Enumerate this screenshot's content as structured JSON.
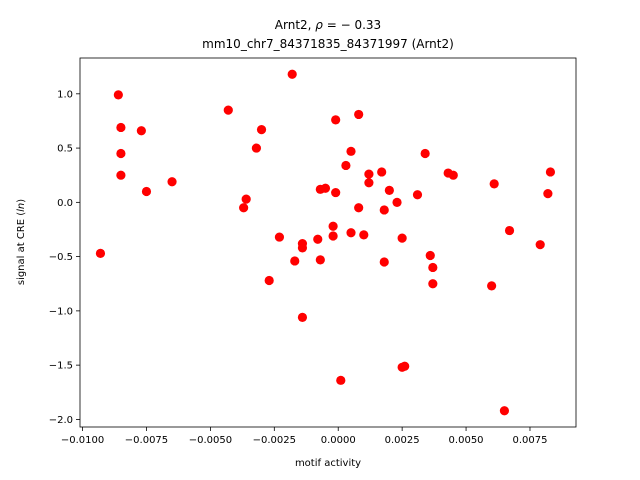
{
  "chart_data": {
    "type": "scatter",
    "title_line1_prefix": "Arnt2, ",
    "title_line1_rho": "ρ",
    "title_line1_suffix": " = − 0.33",
    "title_line2": "mm10_chr7_84371835_84371997 (Arnt2)",
    "xlabel": "motif activity",
    "ylabel_prefix": "signal at CRE (",
    "ylabel_italic": "ln",
    "ylabel_suffix": ")",
    "xlim": [
      -0.0101,
      0.0093
    ],
    "ylim": [
      -2.07,
      1.33
    ],
    "xticks": [
      -0.01,
      -0.0075,
      -0.005,
      -0.0025,
      0.0,
      0.0025,
      0.005,
      0.0075
    ],
    "xtick_labels": [
      "−0.0100",
      "−0.0075",
      "−0.0050",
      "−0.0025",
      "0.0000",
      "0.0025",
      "0.0050",
      "0.0075"
    ],
    "yticks": [
      -2.0,
      -1.5,
      -1.0,
      -0.5,
      0.0,
      0.5,
      1.0
    ],
    "ytick_labels": [
      "−2.0",
      "−1.5",
      "−1.0",
      "−0.5",
      "0.0",
      "0.5",
      "1.0"
    ],
    "marker_color": "#ff0000",
    "grid": false,
    "points": [
      [
        -0.0093,
        -0.47
      ],
      [
        -0.0086,
        0.99
      ],
      [
        -0.0085,
        0.69
      ],
      [
        -0.0085,
        0.45
      ],
      [
        -0.0085,
        0.25
      ],
      [
        -0.0077,
        0.66
      ],
      [
        -0.0075,
        0.1
      ],
      [
        -0.0065,
        0.19
      ],
      [
        -0.0043,
        0.85
      ],
      [
        -0.0037,
        -0.05
      ],
      [
        -0.0036,
        0.03
      ],
      [
        -0.0032,
        0.5
      ],
      [
        -0.003,
        0.67
      ],
      [
        -0.0027,
        -0.72
      ],
      [
        -0.0023,
        -0.32
      ],
      [
        -0.0018,
        1.18
      ],
      [
        -0.0017,
        -0.54
      ],
      [
        -0.0014,
        -0.42
      ],
      [
        -0.0014,
        -0.38
      ],
      [
        -0.0014,
        -1.06
      ],
      [
        -0.0008,
        -0.34
      ],
      [
        -0.0007,
        -0.53
      ],
      [
        -0.0007,
        0.12
      ],
      [
        -0.0005,
        0.13
      ],
      [
        -0.0002,
        -0.31
      ],
      [
        -0.0002,
        -0.22
      ],
      [
        -0.0001,
        0.76
      ],
      [
        -0.0001,
        0.09
      ],
      [
        0.0001,
        -1.64
      ],
      [
        0.0003,
        0.34
      ],
      [
        0.0005,
        0.47
      ],
      [
        0.0005,
        -0.28
      ],
      [
        0.0008,
        0.81
      ],
      [
        0.0008,
        -0.05
      ],
      [
        0.001,
        -0.3
      ],
      [
        0.0012,
        0.26
      ],
      [
        0.0012,
        0.18
      ],
      [
        0.0017,
        0.28
      ],
      [
        0.0018,
        -0.55
      ],
      [
        0.0018,
        -0.07
      ],
      [
        0.002,
        0.11
      ],
      [
        0.0023,
        0.0
      ],
      [
        0.0025,
        -0.33
      ],
      [
        0.0025,
        -1.52
      ],
      [
        0.0026,
        -1.51
      ],
      [
        0.0031,
        0.07
      ],
      [
        0.0034,
        0.45
      ],
      [
        0.0036,
        -0.49
      ],
      [
        0.0037,
        -0.6
      ],
      [
        0.0037,
        -0.75
      ],
      [
        0.0043,
        0.27
      ],
      [
        0.0045,
        0.25
      ],
      [
        0.006,
        -0.77
      ],
      [
        0.0061,
        0.17
      ],
      [
        0.0065,
        -1.92
      ],
      [
        0.0067,
        -0.26
      ],
      [
        0.0079,
        -0.39
      ],
      [
        0.0082,
        0.08
      ],
      [
        0.0083,
        0.28
      ]
    ]
  }
}
